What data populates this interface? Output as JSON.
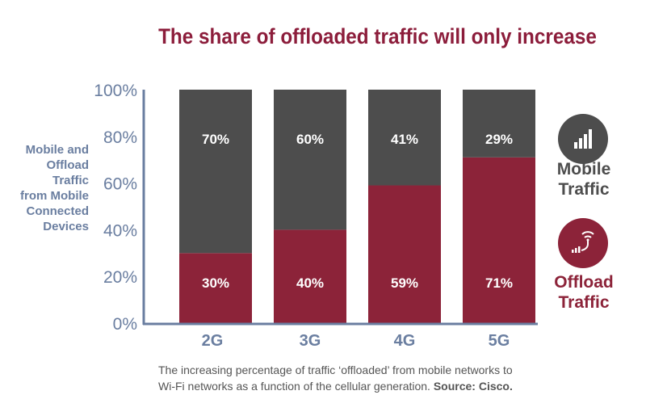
{
  "chart_data": {
    "type": "bar",
    "stacked": true,
    "title": "The share of offloaded traffic will only increase",
    "ylabel": "Mobile and\nOffload\nTraffic\nfrom Mobile\nConnected\nDevices",
    "xlabel": "",
    "ylim": [
      0,
      100
    ],
    "yticks": [
      "0%",
      "20%",
      "40%",
      "60%",
      "80%",
      "100%"
    ],
    "categories": [
      "2G",
      "3G",
      "4G",
      "5G"
    ],
    "series": [
      {
        "name": "Offload Traffic",
        "values": [
          30,
          40,
          59,
          71
        ],
        "labels": [
          "30%",
          "40%",
          "59%",
          "71%"
        ],
        "color": "#8c2339"
      },
      {
        "name": "Mobile Traffic",
        "values": [
          70,
          60,
          41,
          29
        ],
        "labels": [
          "70%",
          "60%",
          "41%",
          "29%"
        ],
        "color": "#4d4d4d"
      }
    ],
    "legend_position": "right",
    "grid": false
  },
  "legend": {
    "mobile": {
      "label": "Mobile\nTraffic",
      "icon": "signal-bars-icon",
      "color": "#4d4d4d"
    },
    "offload": {
      "label": "Offload\nTraffic",
      "icon": "wifi-offload-icon",
      "color": "#8c2339"
    }
  },
  "caption": {
    "text": "The increasing percentage of traffic ‘offloaded’ from mobile networks to\nWi-Fi networks as a function of the cellular generation.",
    "source": "Source: Cisco."
  }
}
